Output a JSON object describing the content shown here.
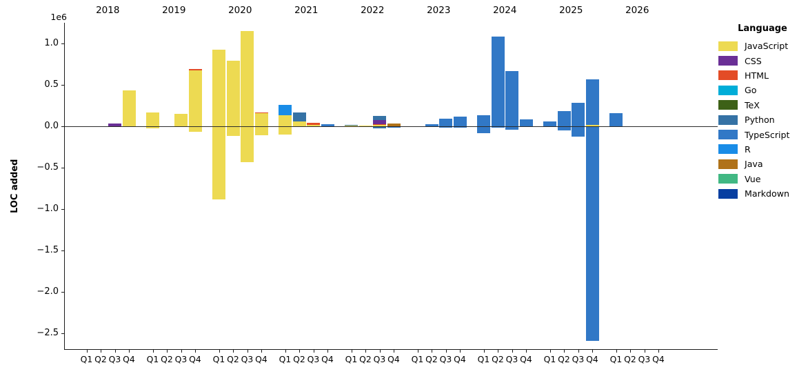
{
  "axis": {
    "ylabel": "LOC added",
    "offset_label": "1e6",
    "ytick_labels": [
      "1.0",
      "0.5",
      "0.0",
      "−0.5",
      "−1.0",
      "−1.5",
      "−2.0",
      "−2.5"
    ],
    "ytick_values": [
      1.0,
      0.5,
      0.0,
      -0.5,
      -1.0,
      -1.5,
      -2.0,
      -2.5
    ],
    "quarter_labels": [
      "Q1",
      "Q2",
      "Q3",
      "Q4"
    ],
    "years": [
      "2018",
      "2019",
      "2020",
      "2021",
      "2022",
      "2023",
      "2024",
      "2025",
      "2026"
    ]
  },
  "legend": {
    "title": "Language",
    "items": [
      {
        "label": "JavaScript",
        "color": "#edda52"
      },
      {
        "label": "CSS",
        "color": "#6a2f96"
      },
      {
        "label": "HTML",
        "color": "#e34c26"
      },
      {
        "label": "Go",
        "color": "#00add8"
      },
      {
        "label": "TeX",
        "color": "#3d6117"
      },
      {
        "label": "Python",
        "color": "#3572a5"
      },
      {
        "label": "TypeScript",
        "color": "#3178c6"
      },
      {
        "label": "R",
        "color": "#198ce7"
      },
      {
        "label": "Java",
        "color": "#b07219"
      },
      {
        "label": "Vue",
        "color": "#41b883"
      },
      {
        "label": "Markdown",
        "color": "#083fa1"
      }
    ]
  },
  "chart_data": {
    "type": "bar",
    "stacked": true,
    "title": "",
    "xlabel": "",
    "ylabel": "LOC added",
    "unit": "LOC, values in millions (axis offset 1e6)",
    "ylim": [
      -2.7,
      1.25
    ],
    "grid": false,
    "legend_position": "right",
    "colors": {
      "JavaScript": "#edda52",
      "CSS": "#6a2f96",
      "HTML": "#e34c26",
      "Go": "#00add8",
      "TeX": "#3d6117",
      "Python": "#3572a5",
      "TypeScript": "#3178c6",
      "R": "#198ce7",
      "Java": "#b07219",
      "Vue": "#41b883",
      "Markdown": "#083fa1"
    },
    "years": [
      {
        "year": "2018",
        "quarters": [
          {
            "q": "Q1",
            "pos": [],
            "neg": []
          },
          {
            "q": "Q2",
            "pos": [],
            "neg": []
          },
          {
            "q": "Q3",
            "pos": [
              [
                "CSS",
                0.03
              ]
            ],
            "neg": []
          },
          {
            "q": "Q4",
            "pos": [
              [
                "JavaScript",
                0.43
              ]
            ],
            "neg": []
          }
        ]
      },
      {
        "year": "2019",
        "quarters": [
          {
            "q": "Q1",
            "pos": [
              [
                "JavaScript",
                0.17
              ]
            ],
            "neg": [
              [
                "JavaScript",
                -0.018
              ]
            ]
          },
          {
            "q": "Q2",
            "pos": [],
            "neg": []
          },
          {
            "q": "Q3",
            "pos": [
              [
                "JavaScript",
                0.148
              ]
            ],
            "neg": []
          },
          {
            "q": "Q4",
            "pos": [
              [
                "JavaScript",
                0.675
              ],
              [
                "HTML",
                0.02
              ]
            ],
            "neg": [
              [
                "JavaScript",
                -0.055
              ]
            ]
          }
        ]
      },
      {
        "year": "2020",
        "quarters": [
          {
            "q": "Q1",
            "pos": [
              [
                "JavaScript",
                0.925
              ]
            ],
            "neg": [
              [
                "JavaScript",
                -0.875
              ]
            ]
          },
          {
            "q": "Q2",
            "pos": [
              [
                "JavaScript",
                0.79
              ]
            ],
            "neg": [
              [
                "JavaScript",
                -0.105
              ]
            ]
          },
          {
            "q": "Q3",
            "pos": [
              [
                "JavaScript",
                1.15
              ]
            ],
            "neg": [
              [
                "JavaScript",
                -0.425
              ]
            ]
          },
          {
            "q": "Q4",
            "pos": [
              [
                "JavaScript",
                0.155
              ],
              [
                "HTML",
                0.012
              ]
            ],
            "neg": [
              [
                "JavaScript",
                -0.1
              ]
            ]
          }
        ]
      },
      {
        "year": "2021",
        "quarters": [
          {
            "q": "Q1",
            "pos": [
              [
                "JavaScript",
                0.13
              ],
              [
                "R",
                0.125
              ]
            ],
            "neg": [
              [
                "JavaScript",
                -0.09
              ]
            ]
          },
          {
            "q": "Q2",
            "pos": [
              [
                "JavaScript",
                0.055
              ],
              [
                "Python",
                0.11
              ]
            ],
            "neg": []
          },
          {
            "q": "Q3",
            "pos": [
              [
                "JavaScript",
                0.013
              ],
              [
                "HTML",
                0.032
              ]
            ],
            "neg": []
          },
          {
            "q": "Q4",
            "pos": [
              [
                "TypeScript",
                0.028
              ]
            ],
            "neg": []
          }
        ]
      },
      {
        "year": "2022",
        "quarters": [
          {
            "q": "Q1",
            "pos": [
              [
                "JavaScript",
                0.008
              ],
              [
                "Python",
                0.009
              ]
            ],
            "neg": []
          },
          {
            "q": "Q2",
            "pos": [
              [
                "JavaScript",
                0.007
              ]
            ],
            "neg": []
          },
          {
            "q": "Q3",
            "pos": [
              [
                "JavaScript",
                0.02
              ],
              [
                "HTML",
                0.007
              ],
              [
                "CSS",
                0.046
              ],
              [
                "Python",
                0.05
              ]
            ],
            "neg": [
              [
                "Python",
                -0.018
              ]
            ]
          },
          {
            "q": "Q4",
            "pos": [
              [
                "Java",
                0.037
              ]
            ],
            "neg": [
              [
                "TypeScript",
                -0.008
              ]
            ]
          }
        ]
      },
      {
        "year": "2023",
        "quarters": [
          {
            "q": "Q1",
            "pos": [],
            "neg": []
          },
          {
            "q": "Q2",
            "pos": [
              [
                "TypeScript",
                0.028
              ]
            ],
            "neg": []
          },
          {
            "q": "Q3",
            "pos": [
              [
                "TypeScript",
                0.09
              ]
            ],
            "neg": [
              [
                "TypeScript",
                -0.012
              ]
            ]
          },
          {
            "q": "Q4",
            "pos": [
              [
                "TypeScript",
                0.12
              ]
            ],
            "neg": [
              [
                "TypeScript",
                -0.006
              ]
            ]
          }
        ]
      },
      {
        "year": "2024",
        "quarters": [
          {
            "q": "Q1",
            "pos": [
              [
                "TypeScript",
                0.13
              ]
            ],
            "neg": [
              [
                "TypeScript",
                -0.072
              ]
            ]
          },
          {
            "q": "Q2",
            "pos": [
              [
                "TypeScript",
                1.08
              ]
            ],
            "neg": [
              [
                "TypeScript",
                -0.012
              ]
            ]
          },
          {
            "q": "Q3",
            "pos": [
              [
                "TypeScript",
                0.67
              ]
            ],
            "neg": [
              [
                "TypeScript",
                -0.035
              ]
            ]
          },
          {
            "q": "Q4",
            "pos": [
              [
                "TypeScript",
                0.08
              ]
            ],
            "neg": []
          }
        ]
      },
      {
        "year": "2025",
        "quarters": [
          {
            "q": "Q1",
            "pos": [
              [
                "TypeScript",
                0.055
              ]
            ],
            "neg": []
          },
          {
            "q": "Q2",
            "pos": [
              [
                "TypeScript",
                0.18
              ]
            ],
            "neg": [
              [
                "TypeScript",
                -0.04
              ]
            ]
          },
          {
            "q": "Q3",
            "pos": [
              [
                "TypeScript",
                0.28
              ]
            ],
            "neg": [
              [
                "TypeScript",
                -0.115
              ]
            ]
          },
          {
            "q": "Q4",
            "pos": [
              [
                "JavaScript",
                0.015
              ],
              [
                "TypeScript",
                0.55
              ]
            ],
            "neg": [
              [
                "TypeScript",
                -2.58
              ]
            ]
          }
        ]
      },
      {
        "year": "2026",
        "quarters": [
          {
            "q": "Q1",
            "pos": [
              [
                "TypeScript",
                0.16
              ]
            ],
            "neg": []
          },
          {
            "q": "Q2",
            "pos": [],
            "neg": []
          },
          {
            "q": "Q3",
            "pos": [],
            "neg": []
          },
          {
            "q": "Q4",
            "pos": [],
            "neg": []
          }
        ]
      }
    ]
  }
}
